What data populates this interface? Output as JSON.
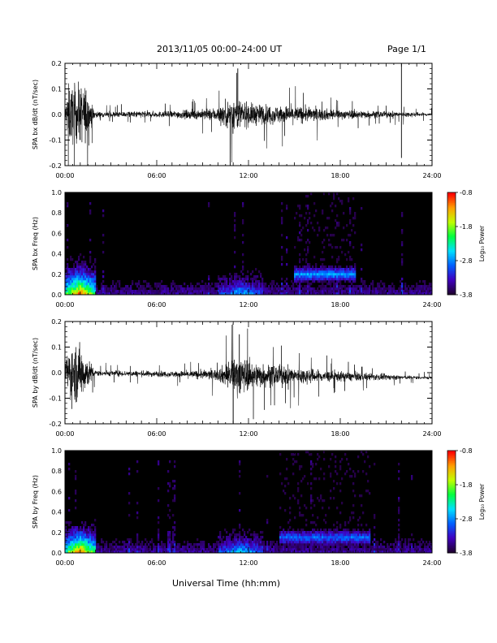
{
  "header": {
    "title": "2013/11/05  00:00–24:00 UT",
    "page": "Page 1/1"
  },
  "footer": {
    "xlabel": "Universal Time (hh:mm)"
  },
  "colors": {
    "background": "#ffffff",
    "spectrogram_background": "#000000",
    "trace": "#000000",
    "colorbar": [
      "#200030",
      "#4000c0",
      "#0060ff",
      "#00e0ff",
      "#00ff40",
      "#c0ff00",
      "#ffa000",
      "#ff0000"
    ]
  },
  "chart_data": [
    {
      "type": "line",
      "panel": "bx_time_series",
      "ylabel": "SPA bx dB/dt (nT/sec)",
      "xlim": [
        0,
        24
      ],
      "ylim": [
        -0.2,
        0.2
      ],
      "x_ticks": [
        "00:00",
        "06:00",
        "12:00",
        "18:00",
        "24:00"
      ],
      "y_ticks": [
        "-0.2",
        "-0.1",
        "0.0",
        "0.1",
        "0.2"
      ],
      "y_tick_values": [
        -0.2,
        -0.1,
        0.0,
        0.1,
        0.2
      ],
      "envelope": {
        "hours": [
          0,
          0.2,
          0.6,
          1.0,
          1.4,
          1.8,
          2,
          3,
          4,
          5,
          6,
          7,
          8,
          9,
          10,
          10.5,
          11,
          11.5,
          12,
          13,
          14,
          15,
          16,
          17,
          18,
          19,
          20,
          21,
          22,
          23,
          24
        ],
        "amplitude": [
          0.03,
          0.2,
          0.2,
          0.2,
          0.2,
          0.06,
          0.02,
          0.02,
          0.02,
          0.025,
          0.02,
          0.025,
          0.03,
          0.035,
          0.05,
          0.09,
          0.12,
          0.1,
          0.08,
          0.07,
          0.06,
          0.06,
          0.05,
          0.04,
          0.03,
          0.03,
          0.025,
          0.02,
          0.02,
          0.015,
          0.012
        ]
      },
      "spikes": [
        {
          "hour": 22.0,
          "value": 0.2
        },
        {
          "hour": 22.0,
          "value": -0.17
        },
        {
          "hour": 10.8,
          "value": -0.2
        },
        {
          "hour": 11.3,
          "value": 0.18
        }
      ]
    },
    {
      "type": "heatmap",
      "panel": "bx_spectrogram",
      "ylabel": "SPA bx Freq (Hz)",
      "xlim": [
        0,
        24
      ],
      "ylim": [
        0,
        1.0
      ],
      "x_ticks": [
        "00:00",
        "06:00",
        "12:00",
        "18:00",
        "24:00"
      ],
      "y_ticks": [
        "0.0",
        "0.2",
        "0.4",
        "0.6",
        "0.8",
        "1.0"
      ],
      "y_tick_values": [
        0,
        0.2,
        0.4,
        0.6,
        0.8,
        1.0
      ],
      "colorbar_label": "Log₁₀ Power",
      "colorbar_range": [
        -3.8,
        -0.8
      ],
      "colorbar_ticks": [
        "-0.8",
        "-1.8",
        "-2.8",
        "-3.8"
      ],
      "colorbar_tick_values": [
        -0.8,
        -1.8,
        -2.8,
        -3.8
      ],
      "features": [
        {
          "hour_range": [
            0,
            2
          ],
          "freq_max": 0.45,
          "peak_log_power": -0.9
        },
        {
          "hour_range": [
            10,
            13
          ],
          "freq_max": 0.3,
          "peak_log_power": -2.5
        },
        {
          "hour_range": [
            15,
            19
          ],
          "freq_center": 0.2,
          "peak_log_power": -2.7
        }
      ]
    },
    {
      "type": "line",
      "panel": "by_time_series",
      "ylabel": "SPA by dB/dt (nT/sec)",
      "xlim": [
        0,
        24
      ],
      "ylim": [
        -0.2,
        0.2
      ],
      "x_ticks": [
        "00:00",
        "06:00",
        "12:00",
        "18:00",
        "24:00"
      ],
      "y_ticks": [
        "-0.2",
        "-0.1",
        "0.0",
        "0.1",
        "0.2"
      ],
      "y_tick_values": [
        -0.2,
        -0.1,
        0.0,
        0.1,
        0.2
      ],
      "envelope": {
        "hours": [
          0,
          0.2,
          0.6,
          1.0,
          1.4,
          1.8,
          2,
          3,
          4,
          5,
          6,
          7,
          8,
          9,
          10,
          10.5,
          11,
          11.5,
          12,
          13,
          14,
          15,
          16,
          17,
          18,
          19,
          20,
          21,
          22,
          23,
          24
        ],
        "amplitude": [
          0.03,
          0.2,
          0.2,
          0.2,
          0.12,
          0.05,
          0.02,
          0.02,
          0.02,
          0.02,
          0.02,
          0.02,
          0.025,
          0.03,
          0.04,
          0.08,
          0.12,
          0.14,
          0.1,
          0.08,
          0.07,
          0.06,
          0.05,
          0.04,
          0.035,
          0.03,
          0.025,
          0.02,
          0.015,
          0.012,
          0.01
        ]
      },
      "spikes": [
        {
          "hour": 11.0,
          "value": -0.2
        },
        {
          "hour": 11.4,
          "value": 0.15
        }
      ]
    },
    {
      "type": "heatmap",
      "panel": "by_spectrogram",
      "ylabel": "SPA by Freq (Hz)",
      "xlim": [
        0,
        24
      ],
      "ylim": [
        0,
        1.0
      ],
      "x_ticks": [
        "00:00",
        "06:00",
        "12:00",
        "18:00",
        "24:00"
      ],
      "y_ticks": [
        "0.0",
        "0.2",
        "0.4",
        "0.6",
        "0.8",
        "1.0"
      ],
      "y_tick_values": [
        0,
        0.2,
        0.4,
        0.6,
        0.8,
        1.0
      ],
      "colorbar_label": "Log₁₀ Power",
      "colorbar_range": [
        -3.8,
        -0.8
      ],
      "colorbar_ticks": [
        "-0.8",
        "-1.8",
        "-2.8",
        "-3.8"
      ],
      "colorbar_tick_values": [
        -0.8,
        -1.8,
        -2.8,
        -3.8
      ],
      "features": [
        {
          "hour_range": [
            0,
            2
          ],
          "freq_max": 0.4,
          "peak_log_power": -0.9
        },
        {
          "hour_range": [
            10,
            13
          ],
          "freq_max": 0.3,
          "peak_log_power": -2.4
        },
        {
          "hour_range": [
            14,
            20
          ],
          "freq_center": 0.15,
          "peak_log_power": -2.9
        }
      ]
    }
  ]
}
